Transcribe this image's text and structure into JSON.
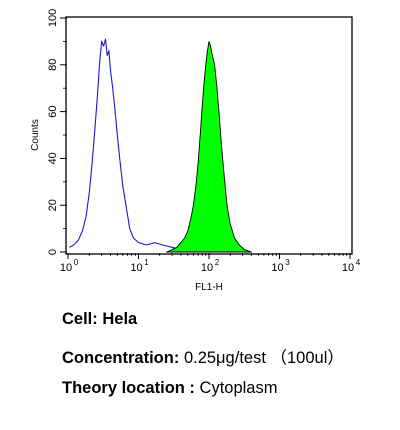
{
  "chart_data": {
    "type": "histogram",
    "xlabel": "FL1-H",
    "ylabel": "Counts",
    "x_scale": "log",
    "xlim": [
      1,
      10000
    ],
    "ylim": [
      0,
      100
    ],
    "x_tick_labels": [
      "10",
      "10",
      "10",
      "10",
      "10"
    ],
    "x_tick_exponents": [
      "0",
      "1",
      "2",
      "3",
      "4"
    ],
    "y_ticks": [
      0,
      20,
      40,
      60,
      80,
      100
    ],
    "grid": false,
    "series": [
      {
        "style": "outline",
        "color": "#1a1acc",
        "points": [
          [
            1.05,
            2
          ],
          [
            1.2,
            3
          ],
          [
            1.4,
            5
          ],
          [
            1.6,
            9
          ],
          [
            1.8,
            15
          ],
          [
            2.0,
            25
          ],
          [
            2.2,
            38
          ],
          [
            2.4,
            52
          ],
          [
            2.6,
            66
          ],
          [
            2.8,
            80
          ],
          [
            3.0,
            90
          ],
          [
            3.2,
            88
          ],
          [
            3.4,
            91
          ],
          [
            3.6,
            84
          ],
          [
            3.8,
            86
          ],
          [
            4.0,
            78
          ],
          [
            4.3,
            70
          ],
          [
            4.6,
            62
          ],
          [
            5.0,
            50
          ],
          [
            5.5,
            38
          ],
          [
            6.0,
            28
          ],
          [
            6.8,
            18
          ],
          [
            7.5,
            10
          ],
          [
            8.5,
            6
          ],
          [
            10,
            4
          ],
          [
            13,
            3
          ],
          [
            17,
            4
          ],
          [
            22,
            3
          ],
          [
            30,
            2
          ],
          [
            40,
            1
          ],
          [
            50,
            0
          ]
        ]
      },
      {
        "style": "filled",
        "color": "#00ff00",
        "points": [
          [
            25,
            0
          ],
          [
            30,
            1
          ],
          [
            35,
            2
          ],
          [
            40,
            4
          ],
          [
            45,
            6
          ],
          [
            50,
            9
          ],
          [
            55,
            14
          ],
          [
            60,
            20
          ],
          [
            65,
            28
          ],
          [
            70,
            38
          ],
          [
            75,
            50
          ],
          [
            80,
            62
          ],
          [
            85,
            72
          ],
          [
            90,
            80
          ],
          [
            95,
            86
          ],
          [
            100,
            90
          ],
          [
            105,
            88
          ],
          [
            110,
            85
          ],
          [
            120,
            80
          ],
          [
            130,
            70
          ],
          [
            140,
            58
          ],
          [
            150,
            46
          ],
          [
            165,
            32
          ],
          [
            180,
            20
          ],
          [
            200,
            12
          ],
          [
            230,
            6
          ],
          [
            270,
            3
          ],
          [
            320,
            1
          ],
          [
            400,
            0
          ]
        ]
      }
    ]
  },
  "captions": {
    "cell_label": "Cell:",
    "cell_value": "Hela",
    "concentration_label": "Concentration:",
    "concentration_value": "0.25μg/test （100ul）",
    "location_label": "Theory location :",
    "location_value": "Cytoplasm"
  }
}
